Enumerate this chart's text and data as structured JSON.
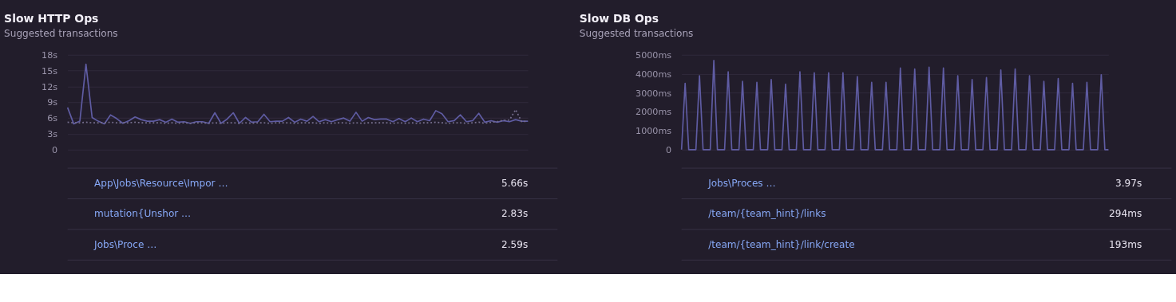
{
  "chart_data": [
    {
      "type": "line",
      "title": "Slow HTTP Ops",
      "subtitle": "Suggested transactions",
      "categories": [
        null,
        null,
        null,
        null,
        null,
        null,
        null,
        null,
        null,
        null,
        null,
        null,
        null,
        null,
        null,
        null,
        null,
        null,
        null,
        null,
        null,
        null,
        null,
        null,
        null,
        null,
        null,
        null,
        null,
        null,
        null,
        null,
        null,
        null,
        null,
        null,
        null,
        null,
        null,
        null,
        null,
        null,
        null,
        null,
        null,
        null,
        null,
        null,
        null,
        null,
        null,
        null,
        null,
        null,
        null,
        null,
        null,
        null,
        null,
        null,
        null,
        null,
        null,
        null,
        null,
        null,
        null,
        null,
        null,
        null,
        null,
        null,
        null,
        null,
        null,
        null
      ],
      "series": [
        {
          "color": "#5f5ca3",
          "line_style": "solid",
          "values": [
            8.0,
            4.9,
            5.4,
            16.2,
            6.1,
            5.4,
            4.9,
            6.6,
            5.9,
            5.0,
            5.5,
            6.2,
            5.7,
            5.4,
            5.4,
            5.7,
            5.2,
            5.8,
            5.2,
            5.3,
            5.0,
            5.3,
            5.3,
            5.0,
            7.0,
            5.0,
            5.8,
            7.0,
            5.0,
            6.1,
            5.2,
            5.3,
            6.7,
            5.3,
            5.4,
            5.4,
            6.1,
            5.2,
            5.8,
            5.4,
            6.3,
            5.3,
            5.7,
            5.3,
            5.7,
            6.0,
            5.4,
            7.1,
            5.4,
            6.1,
            5.7,
            5.8,
            5.8,
            5.3,
            5.9,
            5.3,
            6.0,
            5.3,
            5.8,
            5.5,
            7.4,
            6.8,
            5.3,
            5.5,
            6.6,
            5.3,
            5.5,
            6.9,
            5.2,
            5.5,
            5.2,
            5.5,
            5.3,
            5.7,
            5.4,
            5.4
          ]
        },
        {
          "color": "#77708f",
          "line_style": "dotted",
          "values": [
            5.2,
            5.1,
            5.1,
            5.2,
            5.1,
            5.1,
            5.1,
            5.2,
            5.1,
            5.1,
            5.1,
            5.2,
            5.1,
            5.1,
            5.1,
            5.1,
            5.0,
            5.1,
            5.0,
            5.1,
            5.0,
            5.1,
            5.1,
            5.0,
            5.1,
            5.0,
            5.1,
            5.1,
            5.0,
            5.1,
            5.0,
            5.1,
            5.1,
            5.0,
            5.1,
            5.1,
            5.1,
            5.0,
            5.1,
            5.1,
            5.1,
            5.0,
            5.1,
            5.0,
            5.1,
            5.1,
            5.0,
            5.1,
            5.0,
            5.1,
            5.1,
            5.1,
            5.1,
            5.0,
            5.1,
            5.0,
            5.1,
            5.0,
            5.1,
            5.1,
            5.2,
            5.1,
            5.0,
            5.1,
            5.1,
            5.0,
            5.1,
            5.2,
            5.0,
            5.2,
            5.3,
            5.6,
            5.6,
            7.6,
            5.3,
            5.4
          ]
        }
      ],
      "ylim": [
        0,
        18
      ],
      "yticks": [
        0,
        {
          "value": 3,
          "label": "3s"
        },
        {
          "value": 6,
          "label": "6s"
        },
        {
          "value": 9,
          "label": "9s"
        },
        {
          "value": 12,
          "label": "12s"
        },
        {
          "value": 15,
          "label": "15s"
        },
        {
          "value": 18,
          "label": "18s"
        }
      ],
      "grid": "y",
      "tick_labels": "y",
      "marker": "none",
      "annotations": [
        "App\\Jobs\\Resource\\Impor …",
        "5.66s",
        "mutation{Unshor …",
        "2.83s",
        "Jobs\\Proce …",
        "2.59s"
      ]
    },
    {
      "type": "line",
      "title": "Slow DB Ops",
      "subtitle": "Suggested transactions",
      "categories": [
        null,
        null,
        null,
        null,
        null,
        null,
        null,
        null,
        null,
        null,
        null,
        null,
        null,
        null,
        null,
        null,
        null,
        null,
        null,
        null,
        null,
        null,
        null,
        null,
        null,
        null,
        null,
        null,
        null,
        null,
        null,
        null,
        null,
        null,
        null,
        null,
        null,
        null,
        null,
        null,
        null,
        null,
        null,
        null,
        null,
        null,
        null,
        null,
        null,
        null,
        null,
        null,
        null,
        null,
        null,
        null,
        null,
        null,
        null,
        null,
        null,
        null,
        null,
        null,
        null,
        null,
        null,
        null,
        null,
        null,
        null,
        null,
        null,
        null,
        null,
        null,
        null,
        null,
        null,
        null,
        null,
        null,
        null,
        null,
        null,
        null,
        null,
        null,
        null,
        null,
        null,
        null,
        null,
        null,
        null,
        null,
        null,
        null,
        null,
        null,
        null,
        null,
        null,
        null,
        null,
        null,
        null,
        null,
        null,
        null,
        null,
        null,
        null,
        null,
        null,
        null,
        null,
        null,
        null,
        null
      ],
      "series": [
        {
          "color": "#5f5ca3",
          "line_style": "solid",
          "values": [
            0,
            3500,
            0,
            0,
            0,
            3900,
            0,
            0,
            0,
            4700,
            0,
            0,
            0,
            4100,
            0,
            0,
            0,
            3600,
            0,
            0,
            0,
            3550,
            0,
            0,
            0,
            3700,
            0,
            0,
            0,
            3450,
            0,
            0,
            0,
            4100,
            0,
            0,
            0,
            4050,
            0,
            0,
            0,
            4050,
            0,
            0,
            0,
            4050,
            0,
            0,
            0,
            3850,
            0,
            0,
            0,
            3550,
            0,
            0,
            0,
            3550,
            0,
            0,
            0,
            4300,
            0,
            0,
            0,
            4250,
            0,
            0,
            0,
            4350,
            0,
            0,
            0,
            4300,
            0,
            0,
            0,
            3900,
            0,
            0,
            0,
            3700,
            0,
            0,
            0,
            3800,
            0,
            0,
            0,
            4200,
            0,
            0,
            0,
            4250,
            0,
            0,
            0,
            3900,
            0,
            0,
            0,
            3600,
            0,
            0,
            0,
            3750,
            0,
            0,
            0,
            3500,
            0,
            0,
            0,
            3550,
            0,
            0,
            0,
            3950,
            0,
            0
          ]
        }
      ],
      "ylim": [
        0,
        5000
      ],
      "yticks": [
        0,
        {
          "value": 1000,
          "label": "1000ms"
        },
        {
          "value": 2000,
          "label": "2000ms"
        },
        {
          "value": 3000,
          "label": "3000ms"
        },
        {
          "value": 4000,
          "label": "4000ms"
        },
        {
          "value": 5000,
          "label": "5000ms"
        }
      ],
      "grid": "y",
      "tick_labels": "y",
      "marker": "none",
      "annotations": [
        "Jobs\\Proces …",
        "3.97s",
        "/team/{team_hint}/links",
        "294ms",
        "/team/{team_hint}/link/create",
        "193ms"
      ]
    }
  ]
}
